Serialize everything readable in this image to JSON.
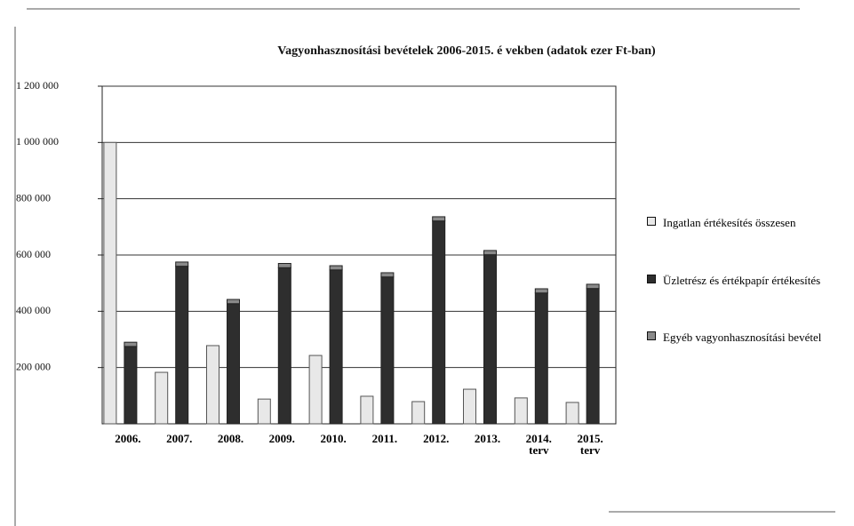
{
  "chart_data": {
    "type": "bar",
    "title": "Vagyonhasznosítási bevételek 2006-2015. é vekben (adatok ezer Ft-ban)",
    "categories": [
      "2006.",
      "2007.",
      "2008.",
      "2009.",
      "2010.",
      "2011.",
      "2012.",
      "2013.",
      "2014.\nterv",
      "2015.\nterv"
    ],
    "series": [
      {
        "name": "Ingatlan értékesítés összesen",
        "color": "#e8e8e8",
        "values": [
          1000000,
          183000,
          278000,
          88000,
          243000,
          98000,
          79000,
          123000,
          92000,
          76000
        ]
      },
      {
        "name": "Üzletrész és értékpapír értékesítés",
        "color": "#2e2e2e",
        "values": [
          275000,
          560000,
          427000,
          555000,
          547000,
          522000,
          721000,
          601000,
          465000,
          481000
        ]
      },
      {
        "name": "Egyéb vagyonhasznosítási bevétel",
        "color": "#8a8a8a",
        "values": [
          15000,
          15000,
          15000,
          15000,
          15000,
          15000,
          15000,
          15000,
          15000,
          15000
        ]
      }
    ],
    "ylim": [
      0,
      1200000
    ],
    "yticks": [
      {
        "value": 200000,
        "label": "200 000"
      },
      {
        "value": 400000,
        "label": "400 000"
      },
      {
        "value": 600000,
        "label": "600 000"
      },
      {
        "value": 800000,
        "label": "800 000"
      },
      {
        "value": 1000000,
        "label": "1 000 000"
      },
      {
        "value": 1200000,
        "label": "1 200 000"
      }
    ],
    "grid": true
  }
}
